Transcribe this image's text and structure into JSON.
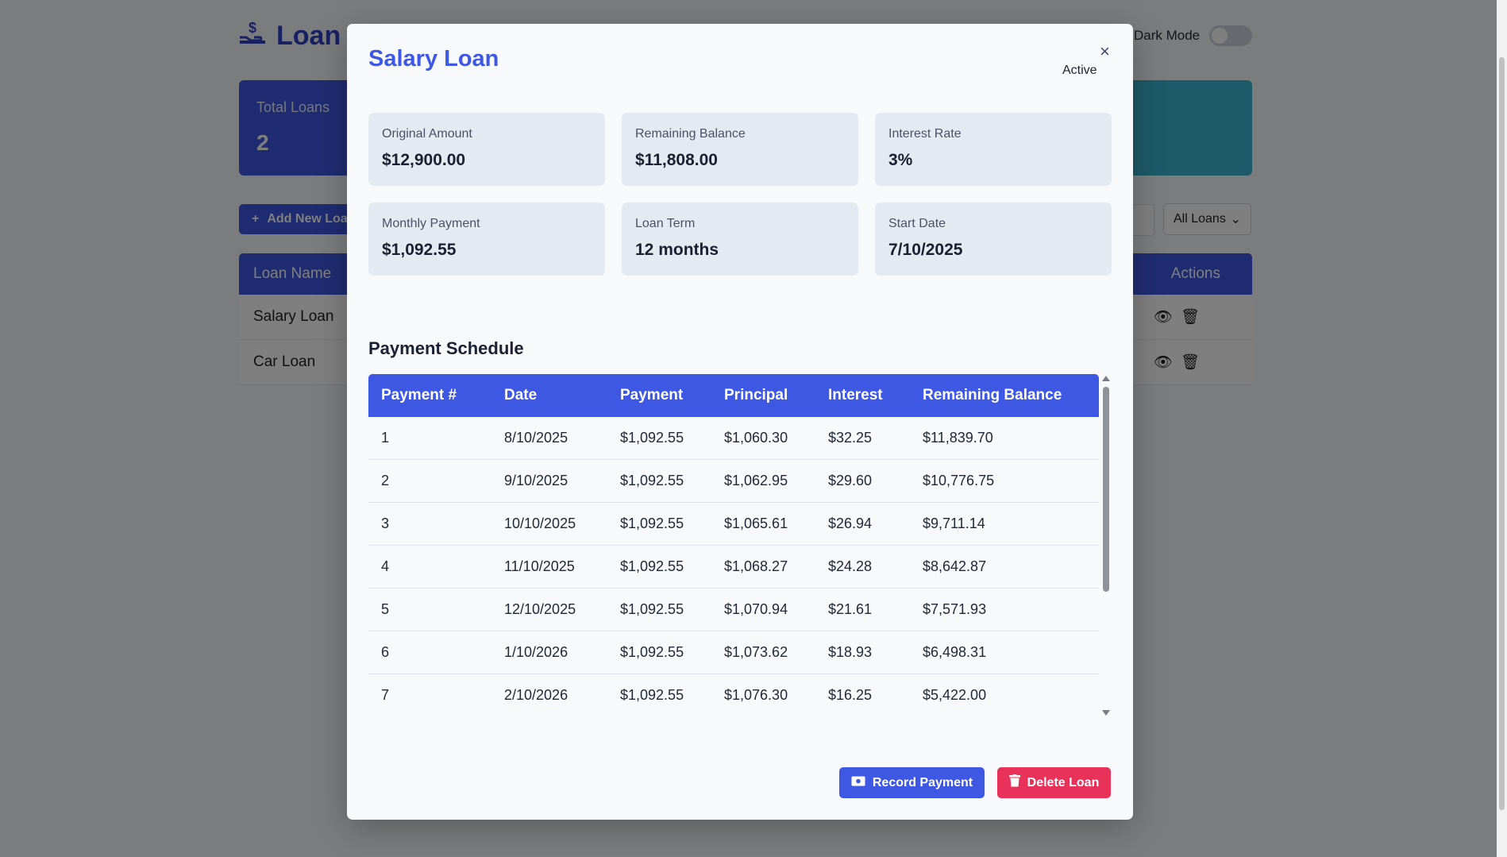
{
  "app": {
    "title": "Loan M",
    "dark_mode_label": "Dark Mode",
    "stats": {
      "total_label": "Total Loans",
      "total_value": "2"
    },
    "add_button": "Add New Loa",
    "filter_select": "All Loans",
    "table": {
      "col_name": "Loan Name",
      "col_actions": "Actions",
      "rows": [
        {
          "name": "Salary Loan"
        },
        {
          "name": "Car Loan"
        }
      ]
    }
  },
  "modal": {
    "title": "Salary Loan",
    "close_label": "×",
    "status": "Active",
    "cards": [
      {
        "label": "Original Amount",
        "value": "$12,900.00"
      },
      {
        "label": "Remaining Balance",
        "value": "$11,808.00"
      },
      {
        "label": "Interest Rate",
        "value": "3%"
      },
      {
        "label": "Monthly Payment",
        "value": "$1,092.55"
      },
      {
        "label": "Loan Term",
        "value": "12 months"
      },
      {
        "label": "Start Date",
        "value": "7/10/2025"
      }
    ],
    "schedule": {
      "title": "Payment Schedule",
      "headers": [
        "Payment #",
        "Date",
        "Payment",
        "Principal",
        "Interest",
        "Remaining Balance"
      ],
      "rows": [
        [
          "1",
          "8/10/2025",
          "$1,092.55",
          "$1,060.30",
          "$32.25",
          "$11,839.70"
        ],
        [
          "2",
          "9/10/2025",
          "$1,092.55",
          "$1,062.95",
          "$29.60",
          "$10,776.75"
        ],
        [
          "3",
          "10/10/2025",
          "$1,092.55",
          "$1,065.61",
          "$26.94",
          "$9,711.14"
        ],
        [
          "4",
          "11/10/2025",
          "$1,092.55",
          "$1,068.27",
          "$24.28",
          "$8,642.87"
        ],
        [
          "5",
          "12/10/2025",
          "$1,092.55",
          "$1,070.94",
          "$21.61",
          "$7,571.93"
        ],
        [
          "6",
          "1/10/2026",
          "$1,092.55",
          "$1,073.62",
          "$18.93",
          "$6,498.31"
        ],
        [
          "7",
          "2/10/2026",
          "$1,092.55",
          "$1,076.30",
          "$16.25",
          "$5,422.00"
        ]
      ]
    },
    "buttons": {
      "record": "Record Payment",
      "delete": "Delete Loan"
    }
  },
  "colors": {
    "primary": "#3e58e3",
    "danger": "#e8325a",
    "info": "#3bb4cf"
  },
  "icons": {
    "logo": "hand-dollar-icon",
    "view": "eye-icon",
    "delete": "trash-icon",
    "record": "money-bill-icon"
  }
}
